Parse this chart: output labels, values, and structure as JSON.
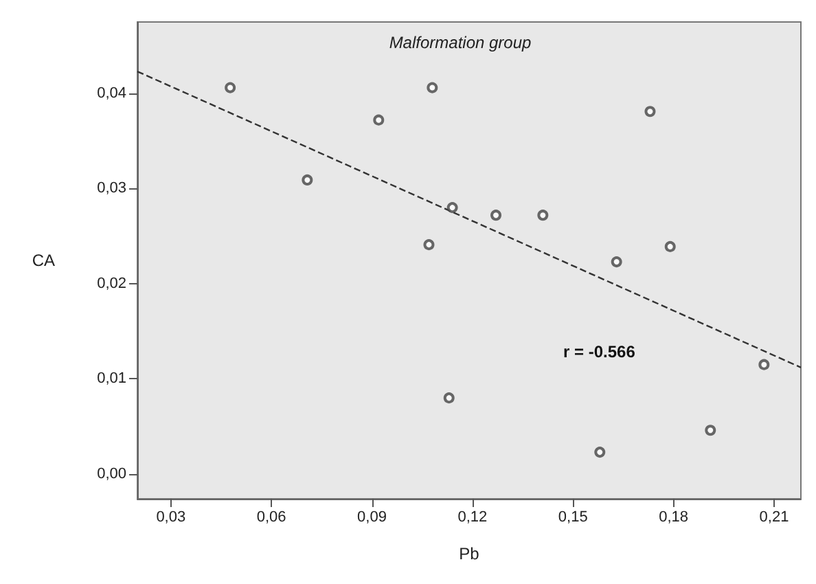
{
  "chart_data": {
    "type": "scatter",
    "title": "Malformation group",
    "xlabel": "Pb",
    "ylabel": "CA",
    "annotations": [
      "r = -0.566"
    ],
    "series": [
      {
        "color": "#444444",
        "marker": "circle",
        "x": [
          0.0477,
          0.0707,
          0.092,
          0.108,
          0.107,
          0.114,
          0.127,
          0.141,
          0.173,
          0.163,
          0.179,
          0.207,
          0.113,
          0.158,
          0.191
        ],
        "values": [
          0.0406,
          0.0309,
          0.0372,
          0.0406,
          0.0241,
          0.028,
          0.0272,
          0.0272,
          0.0381,
          0.0223,
          0.0239,
          0.0115,
          0.008,
          0.0023,
          0.0046
        ]
      },
      {
        "type": "line",
        "color": "#333333",
        "line_style": "dashed",
        "marker": "none",
        "x": [
          0.02,
          0.218
        ],
        "values": [
          0.0423,
          0.0112
        ]
      }
    ],
    "xlim": [
      0.02,
      0.218
    ],
    "ylim": [
      -0.0026,
      0.0475
    ],
    "xticks": [
      {
        "value": 0.03,
        "label": "0,03"
      },
      {
        "value": 0.06,
        "label": "0,06"
      },
      {
        "value": 0.09,
        "label": "0,09"
      },
      {
        "value": 0.12,
        "label": "0,12"
      },
      {
        "value": 0.15,
        "label": "0,15"
      },
      {
        "value": 0.18,
        "label": "0,18"
      },
      {
        "value": 0.21,
        "label": "0,21"
      }
    ],
    "yticks": [
      {
        "value": 0,
        "label": "0,00"
      },
      {
        "value": 0.01,
        "label": "0,01"
      },
      {
        "value": 0.02,
        "label": "0,02"
      },
      {
        "value": 0.03,
        "label": "0,03"
      },
      {
        "value": 0.04,
        "label": "0,04"
      }
    ],
    "grid": false
  }
}
